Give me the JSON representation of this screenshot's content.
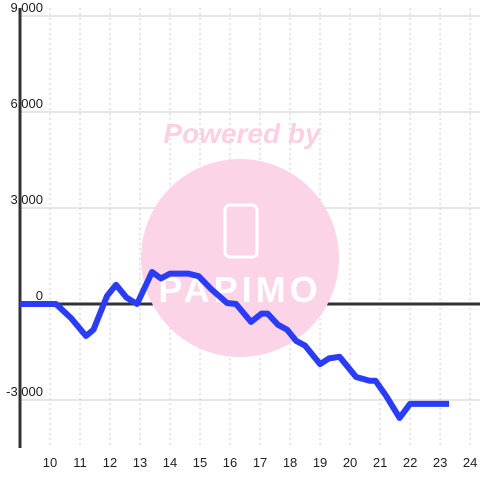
{
  "chart_data": {
    "type": "line",
    "watermark": "Powered by",
    "x": [
      9,
      10.2,
      10.7,
      11.2,
      11.45,
      11.9,
      12.2,
      12.55,
      12.9,
      13.4,
      13.7,
      14.0,
      14.6,
      14.95,
      15.4,
      15.9,
      16.2,
      16.7,
      17.05,
      17.25,
      17.6,
      17.9,
      18.2,
      18.5,
      19.0,
      19.3,
      19.65,
      20.2,
      20.65,
      20.85,
      21.2,
      21.65,
      22.0,
      23.3
    ],
    "series": [
      {
        "color": "#2a3cf5",
        "values": [
          0,
          0,
          -440,
          -1000,
          -800,
          250,
          600,
          200,
          0,
          1000,
          800,
          950,
          950,
          870,
          440,
          30,
          0,
          -560,
          -300,
          -300,
          -650,
          -800,
          -1150,
          -1300,
          -1880,
          -1700,
          -1650,
          -2280,
          -2400,
          -2400,
          -2870,
          -3560,
          -3120,
          -3120
        ]
      }
    ],
    "xlim": [
      9,
      24.33
    ],
    "xticks": [
      10,
      11,
      12,
      13,
      14,
      15,
      16,
      17,
      18,
      19,
      20,
      21,
      22,
      23,
      24
    ],
    "ylim": [
      -4500,
      9000
    ],
    "yticks": [
      {
        "value": -3000,
        "label": "-3,000"
      },
      0,
      {
        "value": 3000,
        "label": "3,000"
      },
      {
        "value": 6000,
        "label": "6,000"
      },
      {
        "value": 9000,
        "label": "9,000"
      }
    ],
    "grid": true
  }
}
